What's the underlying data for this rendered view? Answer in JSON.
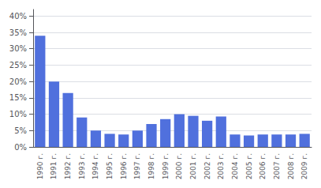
{
  "chart_data": {
    "type": "bar",
    "categories": [
      "1990 г.",
      "1991 г.",
      "1992 г.",
      "1993 г.",
      "1994 г.",
      "1995 г.",
      "1996 г.",
      "1997 г.",
      "1998 г.",
      "1999 г.",
      "2000 г.",
      "2001 г.",
      "2002 г.",
      "2003 г.",
      "2004 г.",
      "2005 г.",
      "2006 г.",
      "2007 г.",
      "2008 г.",
      "2009 г."
    ],
    "values": [
      0.34,
      0.2,
      0.165,
      0.09,
      0.05,
      0.04,
      0.038,
      0.05,
      0.07,
      0.085,
      0.1,
      0.095,
      0.08,
      0.093,
      0.038,
      0.035,
      0.038,
      0.038,
      0.038,
      0.04
    ],
    "ylim": [
      0,
      0.42
    ],
    "yticks": [
      {
        "value": 0.0,
        "label": "0%"
      },
      {
        "value": 0.05,
        "label": "5%"
      },
      {
        "value": 0.1,
        "label": "10%"
      },
      {
        "value": 0.15,
        "label": "15%"
      },
      {
        "value": 0.2,
        "label": "20%"
      },
      {
        "value": 0.25,
        "label": "25%"
      },
      {
        "value": 0.3,
        "label": "30%"
      },
      {
        "value": 0.35,
        "label": "35%"
      },
      {
        "value": 0.4,
        "label": "40%"
      }
    ],
    "grid": true
  }
}
